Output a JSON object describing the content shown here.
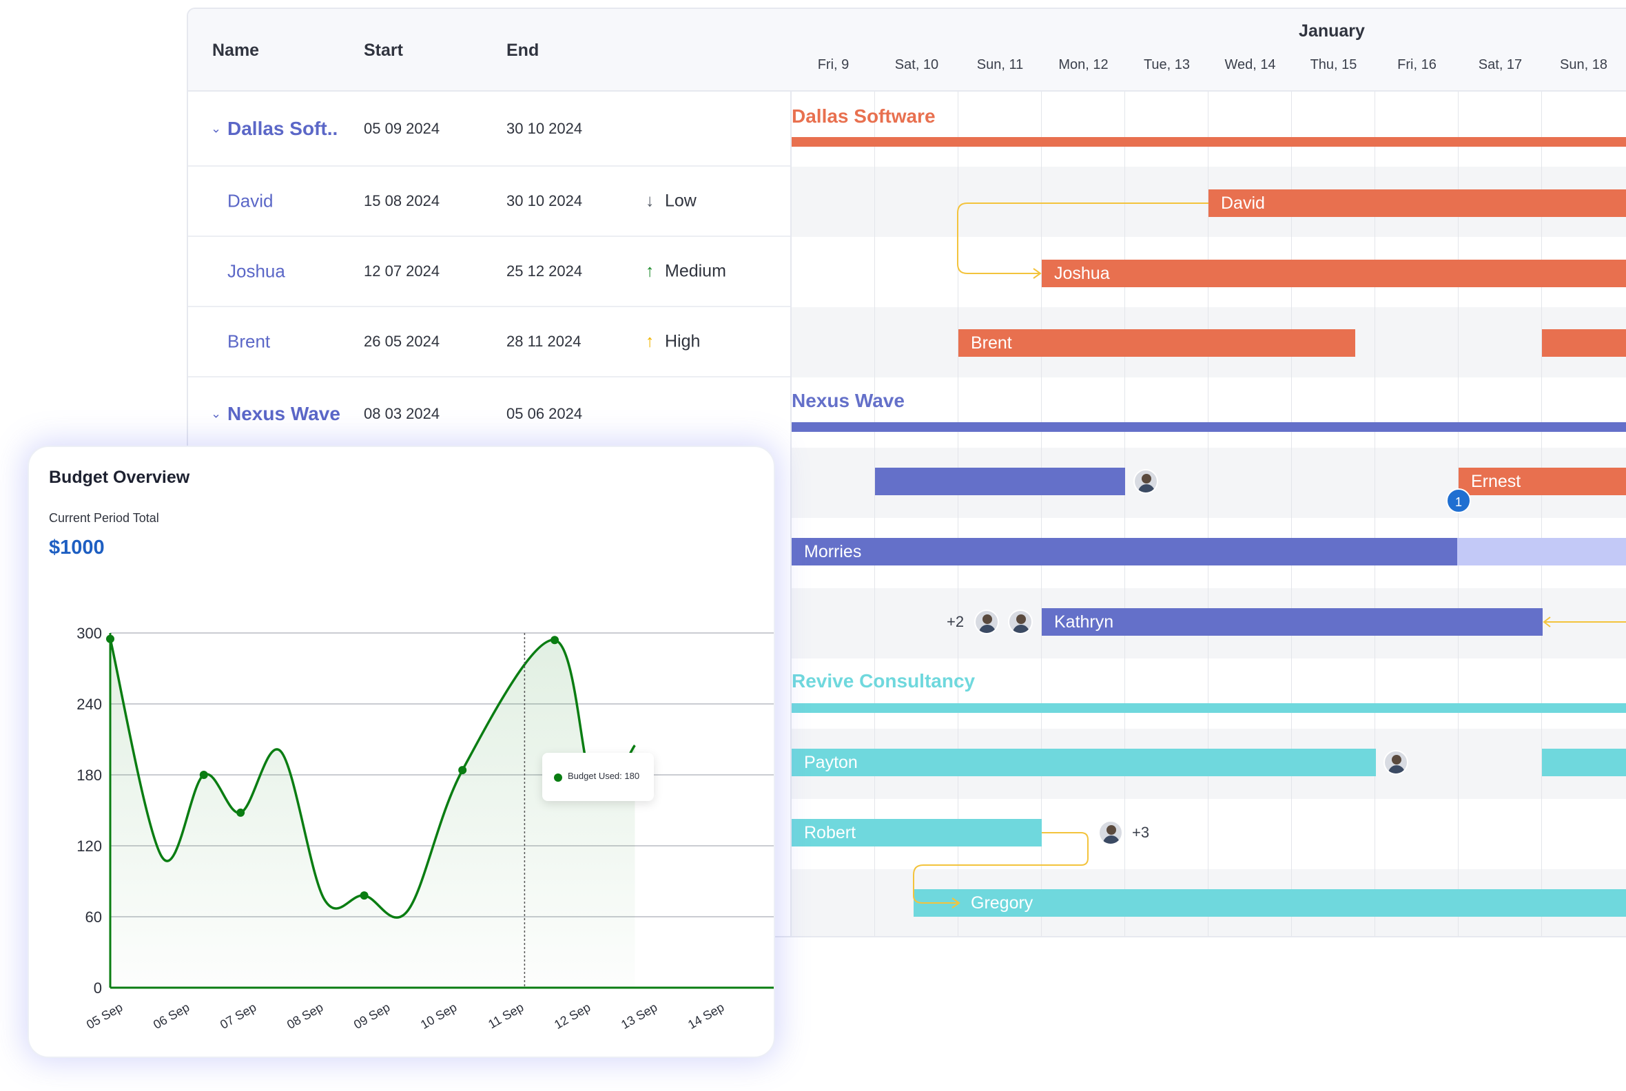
{
  "gantt": {
    "columns": {
      "name": "Name",
      "start": "Start",
      "end": "End"
    },
    "month": "January",
    "days": [
      "Fri, 9",
      "Sat, 10",
      "Sun, 11",
      "Mon, 12",
      "Tue, 13",
      "Wed, 14",
      "Thu, 15",
      "Fri, 16",
      "Sat, 17",
      "Sun, 18"
    ],
    "rows": [
      {
        "name": "Dallas Soft..",
        "start": "05 09 2024",
        "end": "30 10 2024",
        "priority": "",
        "group": true
      },
      {
        "name": "David",
        "start": "15 08 2024",
        "end": "30 10 2024",
        "priority": "Low",
        "priority_icon": "↓"
      },
      {
        "name": "Joshua",
        "start": "12 07 2024",
        "end": "25 12 2024",
        "priority": "Medium",
        "priority_icon": "↑"
      },
      {
        "name": "Brent",
        "start": "26 05 2024",
        "end": "28 11 2024",
        "priority": "High",
        "priority_icon": "↑"
      },
      {
        "name": "Nexus Wave",
        "start": "08 03 2024",
        "end": "05 06 2024",
        "priority": "",
        "group": true
      }
    ],
    "chart": {
      "groups": [
        {
          "title": "Dallas Software",
          "color": "#e8704f"
        },
        {
          "title": "Nexus Wave",
          "color": "#6470c9"
        },
        {
          "title": "Revive Consultancy",
          "color": "#6fd8dd"
        }
      ],
      "tasks": {
        "david": "David",
        "joshua": "Joshua",
        "brent": "Brent",
        "ernest": "Ernest",
        "morries": "Morries",
        "kathryn": "Kathryn",
        "payton": "Payton",
        "robert": "Robert",
        "gregory": "Gregory"
      },
      "kathryn_more": "+2",
      "robert_more": "+3",
      "ernest_badge": "1"
    },
    "colors": {
      "orange": "#e8704f",
      "blue": "#6470c9",
      "light_blue": "#c3c9f7",
      "cyan": "#6fd8dd",
      "connector": "#f3c33c"
    }
  },
  "budget": {
    "title": "Budget Overview",
    "subtitle": "Current Period Total",
    "total": "$1000",
    "tooltip": "Budget Used: 180"
  },
  "chart_data": {
    "type": "area",
    "title": "Budget Overview",
    "categories": [
      "05 Sep",
      "06 Sep",
      "07 Sep",
      "08 Sep",
      "09 Sep",
      "10 Sep",
      "11 Sep",
      "12 Sep",
      "13 Sep",
      "14 Sep"
    ],
    "yticks": [
      0,
      60,
      120,
      180,
      240,
      300
    ],
    "ylim": [
      0,
      300
    ],
    "series": [
      {
        "color": "#0a7d12",
        "points": [
          [
            4.8,
            295
          ],
          [
            5.58,
            110
          ],
          [
            6.2,
            180
          ],
          [
            6.75,
            148
          ],
          [
            7.35,
            200
          ],
          [
            8.0,
            75
          ],
          [
            8.6,
            78
          ],
          [
            9.25,
            65
          ],
          [
            10.07,
            184
          ],
          [
            11.45,
            294
          ],
          [
            12.05,
            165
          ],
          [
            12.65,
            205
          ]
        ],
        "markers": [
          [
            4.8,
            295
          ],
          [
            6.2,
            180
          ],
          [
            6.75,
            148
          ],
          [
            8.6,
            78
          ],
          [
            10.07,
            184
          ],
          [
            11.45,
            294
          ],
          [
            12.05,
            165
          ]
        ]
      }
    ],
    "highlight_x": 11,
    "tooltip_value": 180,
    "grid": true
  }
}
